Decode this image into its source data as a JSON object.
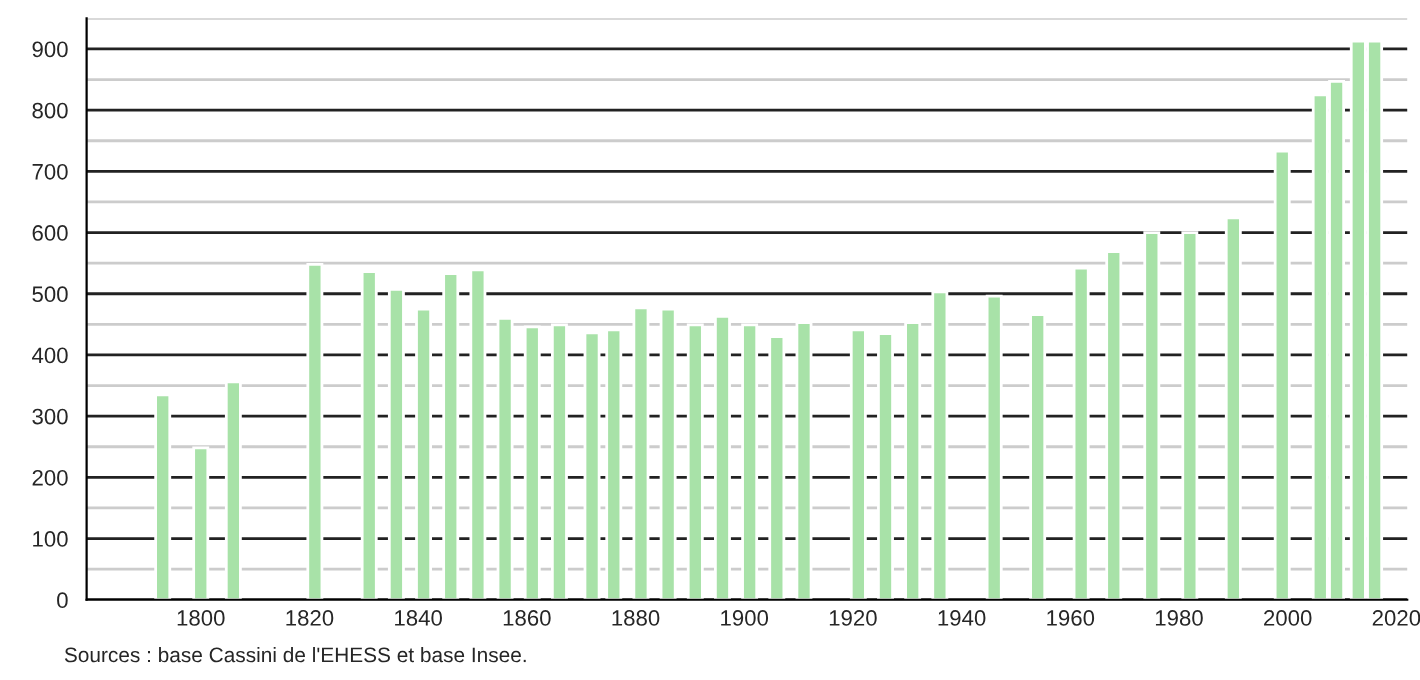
{
  "chart_data": {
    "type": "bar",
    "color": "#a8e2a8",
    "x": [
      1793,
      1800,
      1806,
      1821,
      1831,
      1836,
      1841,
      1846,
      1851,
      1856,
      1861,
      1866,
      1872,
      1876,
      1881,
      1886,
      1891,
      1896,
      1901,
      1906,
      1911,
      1921,
      1926,
      1931,
      1936,
      1946,
      1954,
      1962,
      1968,
      1975,
      1982,
      1990,
      1999,
      2006,
      2009,
      2013,
      2016
    ],
    "values": [
      335,
      248,
      356,
      548,
      536,
      507,
      475,
      533,
      539,
      460,
      446,
      449,
      436,
      441,
      477,
      475,
      449,
      463,
      449,
      430,
      453,
      441,
      435,
      453,
      503,
      496,
      466,
      542,
      569,
      600,
      600,
      624,
      733,
      825,
      847,
      913,
      913
    ],
    "xlim": [
      1779,
      2022
    ],
    "xticks": [
      1800,
      1820,
      1840,
      1860,
      1880,
      1900,
      1920,
      1940,
      1960,
      1980,
      2000,
      2020
    ],
    "ylim": [
      0,
      950
    ],
    "yticks": [
      0,
      {
        "value": 50,
        "label": null
      },
      100,
      {
        "value": 150,
        "label": null
      },
      200,
      {
        "value": 250,
        "label": null
      },
      300,
      {
        "value": 350,
        "label": null
      },
      400,
      {
        "value": 450,
        "label": null
      },
      500,
      {
        "value": 550,
        "label": null
      },
      600,
      {
        "value": 650,
        "label": null
      },
      700,
      {
        "value": 750,
        "label": null
      },
      800,
      {
        "value": 850,
        "label": null
      },
      900,
      {
        "value": 950,
        "label": null
      }
    ],
    "grid": "y",
    "annotations": [
      "Sources : base Cassini de l'EHESS et base Insee."
    ]
  }
}
